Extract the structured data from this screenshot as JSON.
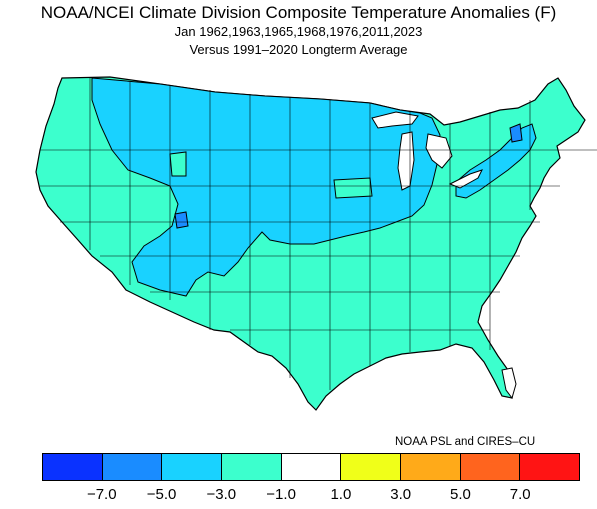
{
  "title": {
    "main": "NOAA/NCEI Climate Division Composite Temperature Anomalies (F)",
    "line2": "Jan   1962,1963,1965,1968,1976,2011,2023",
    "line3": "Versus 1991–2020 Longterm Average"
  },
  "credit": "NOAA PSL and CIRES–CU",
  "legend": {
    "bins": [
      {
        "color": "#0a32ff"
      },
      {
        "color": "#1a8cff"
      },
      {
        "color": "#19d2ff"
      },
      {
        "color": "#3cffcd"
      },
      {
        "color": "#ffffff"
      },
      {
        "color": "#f0ff19"
      },
      {
        "color": "#ffaa19"
      },
      {
        "color": "#ff641e"
      },
      {
        "color": "#ff1414"
      }
    ],
    "ticks": [
      "−7.0",
      "−5.0",
      "−3.0",
      "−1.0",
      "1.0",
      "3.0",
      "5.0",
      "7.0"
    ]
  },
  "map": {
    "outline_color": "#000000",
    "base_color": "#3cffcd",
    "cold_color": "#19d2ff",
    "coldest_color": "#1a8cff"
  }
}
